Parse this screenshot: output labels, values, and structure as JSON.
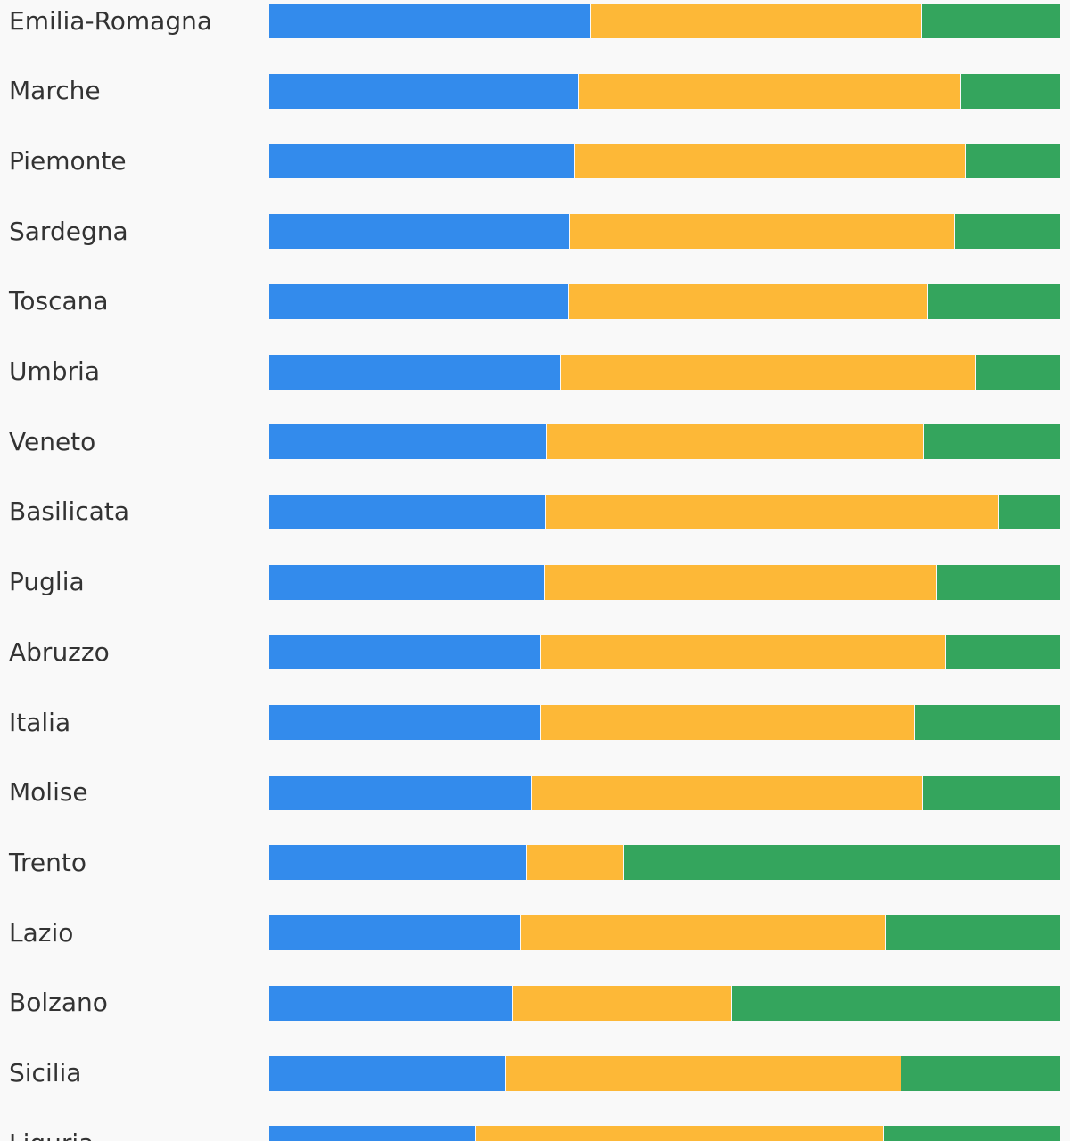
{
  "colors": {
    "background": "#f9f9f9",
    "segment_1": "#338bec",
    "segment_2": "#fdb837",
    "segment_3": "#34a55d",
    "label_text": "#333333"
  },
  "chart_data": {
    "type": "bar",
    "orientation": "horizontal",
    "stacked": true,
    "normalized": true,
    "xlim": [
      0,
      100
    ],
    "grid": false,
    "legend": "none",
    "categories": [
      "Emilia-Romagna",
      "Marche",
      "Piemonte",
      "Sardegna",
      "Toscana",
      "Umbria",
      "Veneto",
      "Basilicata",
      "Puglia",
      "Abruzzo",
      "Italia",
      "Molise",
      "Trento",
      "Lazio",
      "Bolzano",
      "Sicilia",
      "Liguria"
    ],
    "series": [
      {
        "color": "#338bec",
        "values": [
          40.6,
          39.1,
          38.6,
          38.0,
          37.8,
          36.8,
          35.0,
          34.9,
          34.8,
          34.4,
          34.4,
          33.2,
          32.6,
          31.8,
          30.7,
          29.8,
          26.1
        ]
      },
      {
        "color": "#fdb837",
        "values": [
          41.8,
          48.3,
          49.4,
          48.6,
          45.4,
          52.5,
          47.7,
          57.2,
          49.6,
          51.1,
          47.1,
          49.4,
          12.2,
          46.1,
          27.8,
          50.0,
          51.5
        ]
      },
      {
        "color": "#34a55d",
        "values": [
          17.6,
          12.6,
          12.0,
          13.4,
          16.8,
          10.7,
          17.3,
          7.9,
          15.6,
          14.5,
          18.5,
          17.4,
          55.2,
          22.1,
          41.5,
          20.2,
          22.4
        ]
      }
    ]
  }
}
